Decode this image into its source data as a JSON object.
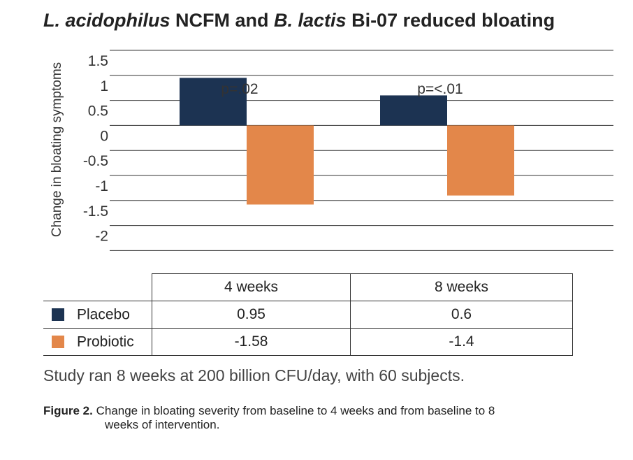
{
  "title": {
    "italic1": "L. acidophilus",
    "text1": " NCFM and ",
    "italic2": "B. lactis",
    "text2": " Bi-07 reduced bloating"
  },
  "chart_data": {
    "type": "bar",
    "categories": [
      "4 weeks",
      "8 weeks"
    ],
    "series": [
      {
        "name": "Placebo",
        "values": [
          0.95,
          0.6
        ],
        "color": "#1c3352"
      },
      {
        "name": "Probiotic",
        "values": [
          -1.58,
          -1.4
        ],
        "color": "#e3874a"
      }
    ],
    "ylabel": "Change in bloating symptoms",
    "ylim": [
      -2,
      1.5
    ],
    "yticks": [
      1.5,
      1,
      0.5,
      0,
      -0.5,
      -1,
      -1.5,
      -2
    ],
    "ytick_labels": [
      "1.5",
      "1",
      "0.5",
      "0",
      "-0.5",
      "-1",
      "-1.5",
      "-2"
    ],
    "annotations": [
      "p=.02",
      "p=<.01"
    ],
    "grid": true
  },
  "table": {
    "headers": [
      "4 weeks",
      "8 weeks"
    ],
    "rows": [
      {
        "label": "Placebo",
        "values": [
          "0.95",
          "0.6"
        ]
      },
      {
        "label": "Probiotic",
        "values": [
          "-1.58",
          "-1.4"
        ]
      }
    ]
  },
  "note": "Study ran 8 weeks at 200 billion CFU/day, with 60 subjects.",
  "caption": {
    "label": "Figure 2.",
    "text_line1": " Change in bloating severity from baseline to 4 weeks and from baseline to 8",
    "text_line2": "weeks of intervention."
  }
}
